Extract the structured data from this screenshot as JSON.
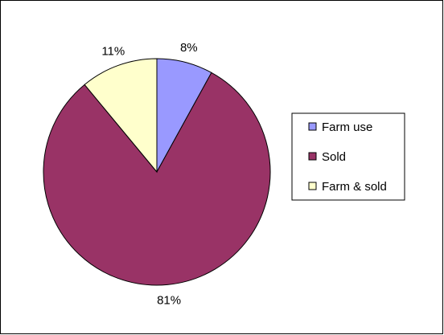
{
  "chart_data": {
    "type": "pie",
    "title": "",
    "start_angle_deg": 0,
    "direction": "clockwise",
    "legend_position": "right",
    "slices": [
      {
        "label": "Farm use",
        "value": 8,
        "display": "8%",
        "color": "#9999FF"
      },
      {
        "label": "Sold",
        "value": 81,
        "display": "81%",
        "color": "#993366"
      },
      {
        "label": "Farm & sold",
        "value": 11,
        "display": "11%",
        "color": "#FFFFCC"
      }
    ]
  },
  "legend": {
    "items": [
      {
        "label": "Farm use",
        "color": "#9999FF"
      },
      {
        "label": "Sold",
        "color": "#993366"
      },
      {
        "label": "Farm & sold",
        "color": "#FFFFCC"
      }
    ]
  }
}
